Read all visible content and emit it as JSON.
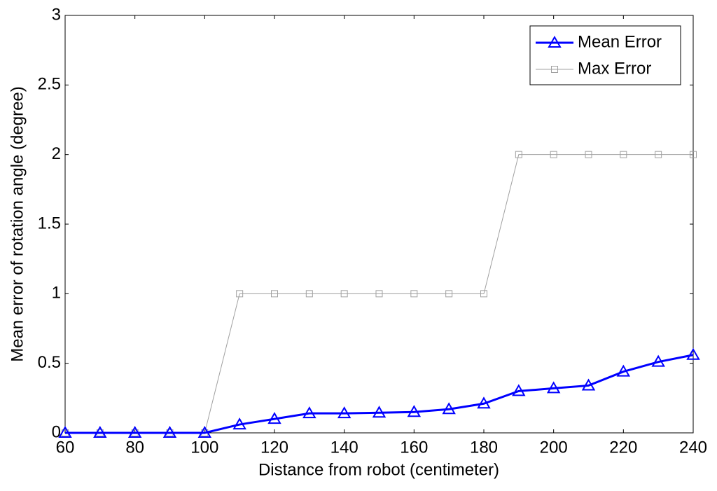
{
  "chart_data": {
    "type": "line",
    "xlabel": "Distance from robot (centimeter)",
    "ylabel": "Mean error of rotation angle (degree)",
    "x": [
      60,
      70,
      80,
      90,
      100,
      110,
      120,
      130,
      140,
      150,
      160,
      170,
      180,
      190,
      200,
      210,
      220,
      230,
      240
    ],
    "series": [
      {
        "name": "Mean Error",
        "color": "#0000ff",
        "marker": "triangle",
        "values": [
          0,
          0,
          0,
          0,
          0,
          0.06,
          0.1,
          0.14,
          0.14,
          0.145,
          0.15,
          0.17,
          0.21,
          0.3,
          0.32,
          0.34,
          0.44,
          0.51,
          0.56
        ]
      },
      {
        "name": "Max Error",
        "color": "#a0a0a0",
        "marker": "square",
        "values": [
          0,
          0,
          0,
          0,
          0,
          1,
          1,
          1,
          1,
          1,
          1,
          1,
          1,
          2,
          2,
          2,
          2,
          2,
          2
        ]
      }
    ],
    "xlim": [
      60,
      240
    ],
    "ylim": [
      0,
      3
    ],
    "xticks": [
      60,
      80,
      100,
      120,
      140,
      160,
      180,
      200,
      220,
      240
    ],
    "yticks": [
      0,
      0.5,
      1,
      1.5,
      2,
      2.5,
      3
    ],
    "legend": "upper right"
  }
}
